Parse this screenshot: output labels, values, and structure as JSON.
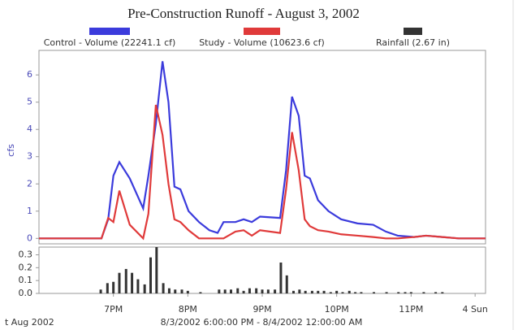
{
  "chart_data": [
    {
      "type": "line",
      "title": "Pre-Construction Runoff - August 3, 2002",
      "ylabel": "cfs",
      "x": [
        0,
        0.84,
        0.93,
        1.0,
        1.08,
        1.22,
        1.4,
        1.47,
        1.57,
        1.66,
        1.74,
        1.82,
        1.9,
        2.01,
        2.15,
        2.29,
        2.4,
        2.48,
        2.64,
        2.75,
        2.86,
        2.97,
        3.24,
        3.32,
        3.4,
        3.49,
        3.57,
        3.64,
        3.75,
        3.89,
        4.06,
        4.28,
        4.49,
        4.66,
        4.82,
        5.04,
        5.2,
        5.42,
        5.64,
        6.0
      ],
      "series": [
        {
          "name": "Control - Volume (22241.1 cf)",
          "color": "#3b3bdc",
          "values": [
            0,
            0,
            0.7,
            2.3,
            2.8,
            2.2,
            1.1,
            2.3,
            4.2,
            6.5,
            5.0,
            1.9,
            1.8,
            1.0,
            0.6,
            0.3,
            0.2,
            0.6,
            0.6,
            0.7,
            0.6,
            0.8,
            0.75,
            2.5,
            5.2,
            4.5,
            2.3,
            2.2,
            1.4,
            1.0,
            0.7,
            0.55,
            0.5,
            0.25,
            0.1,
            0.05,
            0.1,
            0.05,
            0,
            0
          ]
        },
        {
          "name": "Study - Volume (10623.6 cf)",
          "color": "#e03a3a",
          "values": [
            0,
            0,
            0.75,
            0.6,
            1.75,
            0.5,
            0,
            0.9,
            4.9,
            3.8,
            2.0,
            0.7,
            0.6,
            0.3,
            0,
            0,
            0,
            0,
            0.25,
            0.3,
            0.1,
            0.3,
            0.2,
            1.8,
            3.9,
            2.5,
            0.7,
            0.45,
            0.3,
            0.25,
            0.15,
            0.1,
            0.05,
            0,
            0,
            0.05,
            0.1,
            0.05,
            0,
            0
          ]
        }
      ],
      "xlim": [
        0,
        6
      ],
      "ylim": [
        -0.2,
        6.9
      ],
      "yticks": [
        0,
        1,
        2,
        3,
        4,
        5,
        6
      ]
    },
    {
      "type": "bar",
      "date_label": "t Aug 2002",
      "xlabel": "8/3/2002 6:00:00 PM - 8/4/2002 12:00:00 AM",
      "x": [
        0.83,
        0.92,
        1.0,
        1.08,
        1.17,
        1.25,
        1.33,
        1.42,
        1.5,
        1.58,
        1.67,
        1.75,
        1.83,
        1.92,
        2.0,
        2.08,
        2.17,
        2.25,
        2.33,
        2.42,
        2.5,
        2.58,
        2.67,
        2.75,
        2.83,
        2.92,
        3.0,
        3.08,
        3.17,
        3.25,
        3.33,
        3.42,
        3.5,
        3.58,
        3.67,
        3.75,
        3.83,
        3.92,
        4.0,
        4.08,
        4.17,
        4.25,
        4.33,
        4.42,
        4.5,
        4.58,
        4.67,
        4.75,
        4.83,
        4.92,
        5.0,
        5.08,
        5.17,
        5.25,
        5.33,
        5.42
      ],
      "series": [
        {
          "name": "Rainfall (2.67 in)",
          "color": "#333333",
          "values": [
            0.03,
            0.08,
            0.09,
            0.16,
            0.19,
            0.16,
            0.11,
            0.07,
            0.28,
            0.36,
            0.08,
            0.04,
            0.03,
            0.03,
            0.02,
            0,
            0.01,
            0,
            0,
            0.03,
            0.03,
            0.03,
            0.04,
            0.02,
            0.04,
            0.04,
            0.03,
            0.03,
            0.03,
            0.24,
            0.14,
            0.02,
            0.03,
            0.02,
            0.02,
            0.02,
            0.02,
            0.01,
            0.02,
            0.01,
            0.02,
            0.01,
            0.01,
            0,
            0.01,
            0,
            0.01,
            0,
            0.01,
            0.01,
            0.01,
            0,
            0.01,
            0,
            0.01,
            0.01
          ]
        }
      ],
      "xlim": [
        0,
        6
      ],
      "ylim": [
        0,
        0.36
      ],
      "yticks": [
        {
          "value": 0,
          "label": "0.0"
        },
        {
          "value": 0.1,
          "label": "0.1"
        },
        {
          "value": 0.2,
          "label": "0.2"
        },
        {
          "value": 0.3,
          "label": "0.3"
        }
      ],
      "xticks": [
        {
          "value": 1,
          "label": "7PM"
        },
        {
          "value": 2,
          "label": "8PM"
        },
        {
          "value": 3,
          "label": "9PM"
        },
        {
          "value": 4,
          "label": "10PM"
        },
        {
          "value": 5,
          "label": "11PM"
        },
        {
          "value": 5.86,
          "label": "4 Sun"
        }
      ]
    }
  ]
}
